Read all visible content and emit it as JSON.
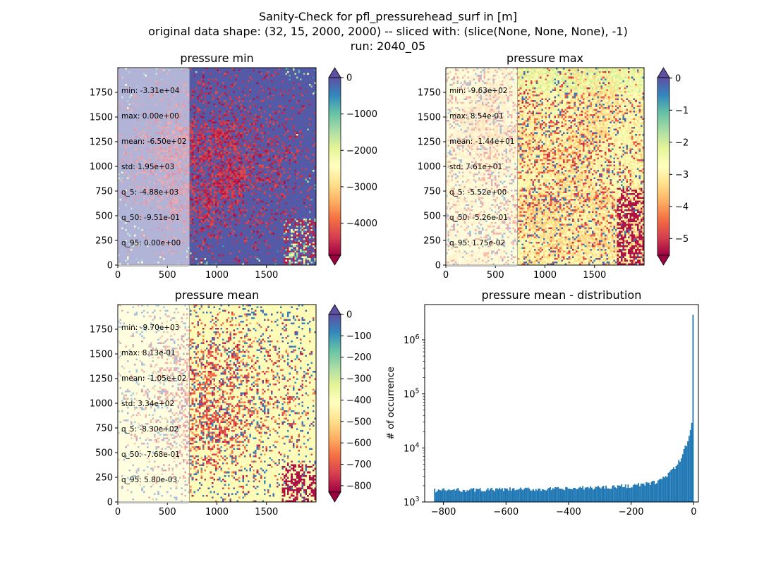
{
  "figure": {
    "title_lines": [
      "Sanity-Check for pfl_pressurehead_surf in [m]",
      "original data shape: (32, 15, 2000, 2000) -- sliced with: (slice(None, None, None), -1)",
      "run: 2040_05"
    ],
    "colormap": "Spectral",
    "colormap_stops": [
      "#9e0142",
      "#d53e4f",
      "#f46d43",
      "#fdae61",
      "#fee08b",
      "#ffffbf",
      "#e6f598",
      "#abdda4",
      "#66c2a5",
      "#3288bd",
      "#5e4fa2"
    ]
  },
  "chart_data": [
    {
      "type": "heatmap",
      "title": "pressure min",
      "xlim": [
        0,
        2000
      ],
      "ylim": [
        0,
        2000
      ],
      "xticks": [
        0,
        500,
        1000,
        1500
      ],
      "yticks": [
        0,
        250,
        500,
        750,
        1000,
        1250,
        1500,
        1750
      ],
      "colorbar": {
        "min": -4880,
        "max": 0,
        "ticks": [
          0,
          -1000,
          -2000,
          -3000,
          -4000
        ],
        "extend": "both"
      },
      "stats": [
        "min: -3.31e+04",
        "max: 0.00e+00",
        "mean: -6.50e+02",
        "std: 1.95e+03",
        "q_5: -4.88e+03",
        "q_50: -9.51e-01",
        "q_95: 0.00e+00"
      ]
    },
    {
      "type": "heatmap",
      "title": "pressure max",
      "xlim": [
        0,
        2000
      ],
      "ylim": [
        0,
        2000
      ],
      "xticks": [
        0,
        500,
        1000,
        1500
      ],
      "yticks": [
        0,
        250,
        500,
        750,
        1000,
        1250,
        1500,
        1750
      ],
      "colorbar": {
        "min": -5.52,
        "max": 0.0175,
        "ticks": [
          0,
          -1,
          -2,
          -3,
          -4,
          -5
        ],
        "extend": "both"
      },
      "stats": [
        "min: -9.63e+02",
        "max: 8.54e-01",
        "mean: -1.44e+01",
        "std: 7.61e+01",
        "q_5: -5.52e+00",
        "q_50: -5.26e-01",
        "q_95: 1.75e-02"
      ]
    },
    {
      "type": "heatmap",
      "title": "pressure mean",
      "xlim": [
        0,
        2000
      ],
      "ylim": [
        0,
        2000
      ],
      "xticks": [
        0,
        500,
        1000,
        1500
      ],
      "yticks": [
        0,
        250,
        500,
        750,
        1000,
        1250,
        1500,
        1750
      ],
      "colorbar": {
        "min": -830,
        "max": 0.0058,
        "ticks": [
          0,
          -100,
          -200,
          -300,
          -400,
          -500,
          -600,
          -700,
          -800
        ],
        "extend": "both"
      },
      "stats": [
        "min: -9.70e+03",
        "max: 8.13e-01",
        "mean: -1.05e+02",
        "std: 3.34e+02",
        "q_5: -8.30e+02",
        "q_50: -7.68e-01",
        "q_95: 5.80e-03"
      ]
    },
    {
      "type": "bar",
      "title": "pressure mean - distribution",
      "ylabel": "# of occurrence",
      "xlabel": "",
      "yscale": "log",
      "xlim": [
        -860,
        15
      ],
      "ylim": [
        1000,
        4500000
      ],
      "xticks": [
        -800,
        -600,
        -400,
        -200,
        0
      ],
      "yticks_log_exponents": [
        3,
        4,
        5,
        6
      ],
      "bin_range": [
        -830,
        0
      ],
      "bar_color": "#1f77b4",
      "curve_x": [
        -830,
        -400,
        -200,
        -150,
        -120,
        -100,
        -80,
        -60,
        -40,
        -20,
        -10,
        -5,
        -2,
        0
      ],
      "curve_y": [
        1650,
        1750,
        2000,
        2150,
        2350,
        2700,
        3300,
        4300,
        6500,
        13000,
        22000,
        32000,
        48000,
        52000
      ],
      "spike": {
        "x": 0,
        "y": 2900000
      }
    }
  ]
}
